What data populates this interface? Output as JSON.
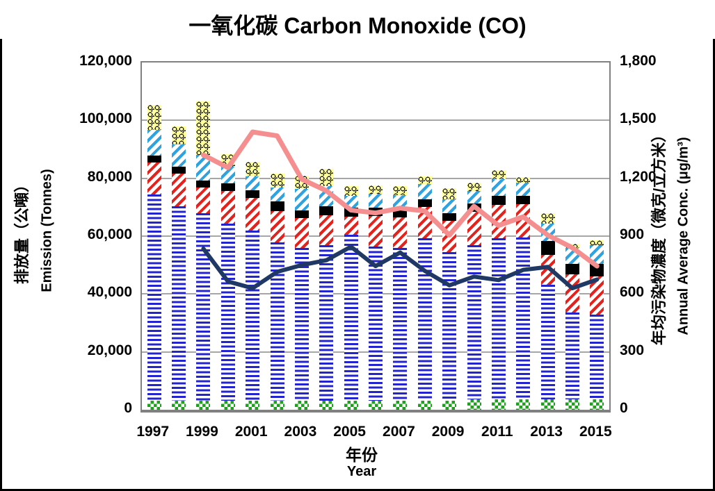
{
  "title": "一氧化碳 Carbon Monoxide (CO)",
  "left_axis": {
    "title_zh": "排放量（公噸）",
    "title_en": "Emission (Tonnes)",
    "ticks": [
      {
        "label": "0",
        "value": 0
      },
      {
        "label": "20,000",
        "value": 20000
      },
      {
        "label": "40,000",
        "value": 40000
      },
      {
        "label": "60,000",
        "value": 60000
      },
      {
        "label": "80,000",
        "value": 80000
      },
      {
        "label": "100,000",
        "value": 100000
      },
      {
        "label": "120,000",
        "value": 120000
      }
    ]
  },
  "right_axis": {
    "title_zh": "年均污染物濃度（微克/立方米）",
    "title_en": "Annual Average Conc. (μg/m³)",
    "ticks": [
      {
        "label": "0",
        "value": 0
      },
      {
        "label": "300",
        "value": 300
      },
      {
        "label": "600",
        "value": 600
      },
      {
        "label": "900",
        "value": 900
      },
      {
        "label": "1,200",
        "value": 1200
      },
      {
        "label": "1,500",
        "value": 1500
      },
      {
        "label": "1,800",
        "value": 1800
      }
    ]
  },
  "x_axis": {
    "title_zh": "年份",
    "title_en": "Year",
    "tick_labels": [
      "1997",
      "1999",
      "2001",
      "2003",
      "2005",
      "2007",
      "2009",
      "2011",
      "2013",
      "2015"
    ]
  },
  "chart_data": {
    "type": "combo: stacked bar (left axis) + line (right axis)",
    "title": "一氧化碳 Carbon Monoxide (CO)",
    "years": [
      1997,
      1998,
      1999,
      2000,
      2001,
      2002,
      2003,
      2004,
      2005,
      2006,
      2007,
      2008,
      2009,
      2010,
      2011,
      2012,
      2013,
      2014,
      2015
    ],
    "bar_axis": "left",
    "bar_unit": "tonnes",
    "ylim_left": [
      0,
      120000
    ],
    "ylim_right": [
      0,
      1800
    ],
    "grid": "horizontal gridlines every 20,000 (left) / 300 (right)",
    "legend": "none visible",
    "bar_series": [
      {
        "name": "green-checker-segment",
        "pattern": "green checkerboard",
        "css": "seg-green",
        "values": [
          3200,
          3200,
          3200,
          3200,
          3200,
          3200,
          3200,
          3200,
          3200,
          3200,
          3200,
          3200,
          3200,
          3500,
          3500,
          3500,
          3500,
          3500,
          3500
        ]
      },
      {
        "name": "blue-hstripe-segment",
        "pattern": "blue horizontal stripes",
        "css": "seg-blue",
        "values": [
          71200,
          67200,
          64800,
          61100,
          58700,
          54700,
          52800,
          53600,
          57200,
          53200,
          52800,
          56000,
          51200,
          53300,
          55700,
          56100,
          39600,
          30100,
          29300
        ]
      },
      {
        "name": "red-diagonal-segment",
        "pattern": "red diagonal stripes",
        "css": "seg-red",
        "values": [
          11000,
          11200,
          8800,
          11200,
          11200,
          10800,
          10200,
          10400,
          6400,
          10600,
          10400,
          10800,
          10800,
          11600,
          11600,
          11500,
          10400,
          13100,
          13200
        ]
      },
      {
        "name": "black-solid-segment",
        "pattern": "solid black",
        "css": "seg-black",
        "values": [
          2400,
          2400,
          2400,
          2800,
          2700,
          3200,
          2600,
          3200,
          3000,
          2800,
          2800,
          2800,
          2800,
          2800,
          3200,
          2800,
          4800,
          3600,
          4300
        ]
      },
      {
        "name": "cyan-diagonal-segment",
        "pattern": "cyan diagonal stripes",
        "css": "seg-cyan",
        "values": [
          8900,
          7600,
          8800,
          5700,
          4900,
          4800,
          7600,
          6800,
          4100,
          4900,
          4900,
          5200,
          4800,
          4400,
          5600,
          4500,
          6000,
          5600,
          6500
        ]
      },
      {
        "name": "yellow-net-segment",
        "pattern": "pale yellow with black netting",
        "css": "seg-yellow",
        "values": [
          8700,
          6300,
          18500,
          4400,
          5000,
          4800,
          4400,
          6100,
          3500,
          2900,
          3100,
          2700,
          3700,
          2800,
          3200,
          2000,
          3600,
          1500,
          1700
        ]
      }
    ],
    "bar_totals": [
      105400,
      97900,
      106500,
      88400,
      85700,
      81500,
      80800,
      83300,
      77400,
      77600,
      77200,
      80700,
      76500,
      78400,
      82800,
      80400,
      67900,
      57400,
      58500
    ],
    "line_series": [
      {
        "name": "pink-line",
        "axis": "right",
        "unit": "μg/m³",
        "color": "#F58F8F",
        "width": 7,
        "values": [
          null,
          null,
          1320,
          1255,
          1440,
          1420,
          1195,
          1135,
          1035,
          1020,
          1045,
          1030,
          905,
          1055,
          955,
          1000,
          905,
          840,
          745
        ]
      },
      {
        "name": "navy-line",
        "axis": "right",
        "unit": "μg/m³",
        "color": "#1F3864",
        "width": 6,
        "values": [
          null,
          null,
          835,
          665,
          630,
          715,
          750,
          775,
          845,
          745,
          815,
          720,
          645,
          690,
          672,
          725,
          740,
          630,
          675
        ]
      }
    ],
    "colors": {
      "green": "#1FA11F",
      "blue": "#2424CE",
      "red": "#E3231D",
      "black": "#000000",
      "cyan": "#2FA3E0",
      "yellow_bg": "#FFFF9C",
      "pink_line": "#F58F8F",
      "navy_line": "#1F3864",
      "gridline": "#A6A6A6",
      "plot_frame": "#808080"
    }
  }
}
